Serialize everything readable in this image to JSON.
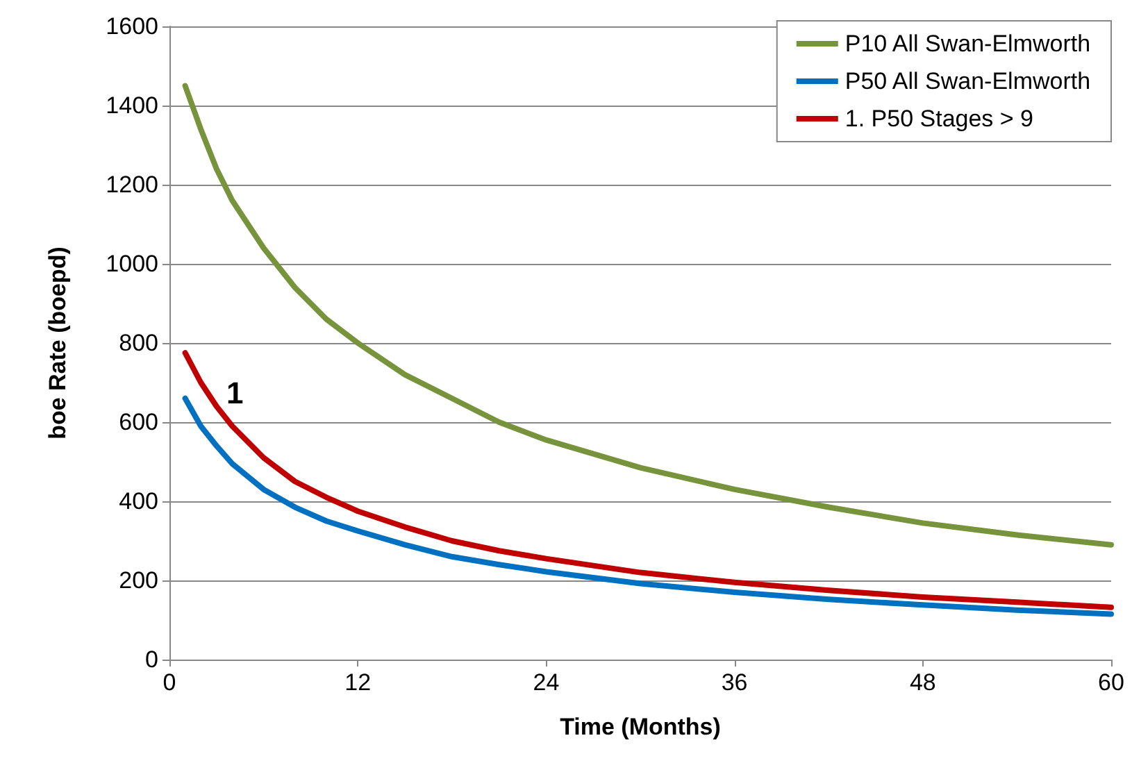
{
  "chart_data": {
    "type": "line",
    "xlabel": "Time (Months)",
    "ylabel": "boe Rate (boepd)",
    "xlim": [
      0,
      60
    ],
    "xticks": [
      0,
      12,
      24,
      36,
      48,
      60
    ],
    "ylim": [
      0,
      1600
    ],
    "yticks": [
      0,
      200,
      400,
      600,
      800,
      1000,
      1200,
      1400,
      1600
    ],
    "grid": "y",
    "legend": "top right",
    "marker": "none",
    "line_style": "solid",
    "x": [
      1,
      2,
      3,
      4,
      6,
      8,
      10,
      12,
      15,
      18,
      21,
      24,
      30,
      36,
      42,
      48,
      54,
      60
    ],
    "series": [
      {
        "name": "P10 All Swan-Elmworth",
        "color": "#77933c",
        "values": [
          1450,
          1340,
          1240,
          1160,
          1040,
          940,
          860,
          800,
          720,
          660,
          600,
          555,
          485,
          430,
          385,
          345,
          315,
          290
        ]
      },
      {
        "name": "P50 All Swan-Elmworth",
        "color": "#0070c0",
        "values": [
          660,
          590,
          540,
          495,
          430,
          385,
          350,
          325,
          290,
          260,
          240,
          222,
          192,
          170,
          152,
          138,
          125,
          115
        ]
      },
      {
        "name": "1. P50 Stages > 9",
        "color": "#c00000",
        "values": [
          775,
          700,
          640,
          590,
          510,
          450,
          410,
          375,
          335,
          300,
          275,
          255,
          220,
          195,
          175,
          158,
          145,
          132
        ]
      }
    ],
    "annotations": [
      "1"
    ]
  }
}
